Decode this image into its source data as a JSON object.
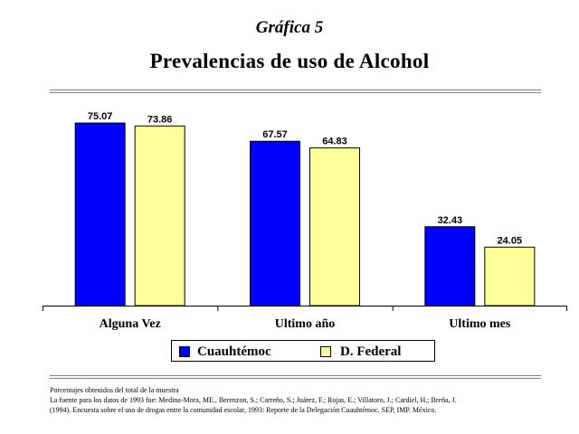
{
  "heading": {
    "kicker": "Gráfica 5",
    "title": "Prevalencias de uso de Alcohol"
  },
  "chart_data": {
    "type": "bar",
    "categories": [
      "Alguna Vez",
      "Ultimo año",
      "Ultimo mes"
    ],
    "series": [
      {
        "name": "Cuauhtémoc",
        "values": [
          75.07,
          67.57,
          32.43
        ],
        "color": "#0000ff"
      },
      {
        "name": "D. Federal",
        "values": [
          73.86,
          64.83,
          24.05
        ],
        "color": "#ffff99"
      }
    ],
    "ylim": [
      0,
      100
    ],
    "grid": false,
    "legend_position": "bottom"
  },
  "footnote": {
    "lines": [
      "Porcentajes obtenidos del total de la muestra",
      "La fuente para los datos de 1993 fue: Medina-Mora, ME., Berenzon, S.; Carreño, S.; Juárez, F.; Rojas, E.; Villatoro, J.; Cardiel, H.; Breña, J.",
      "(1994). Encuesta sobre el uso de drogas entre la comunidad escolar, 1993: Reporte de la Delegación Cuauhtémoc. SEP, IMP. México."
    ]
  }
}
